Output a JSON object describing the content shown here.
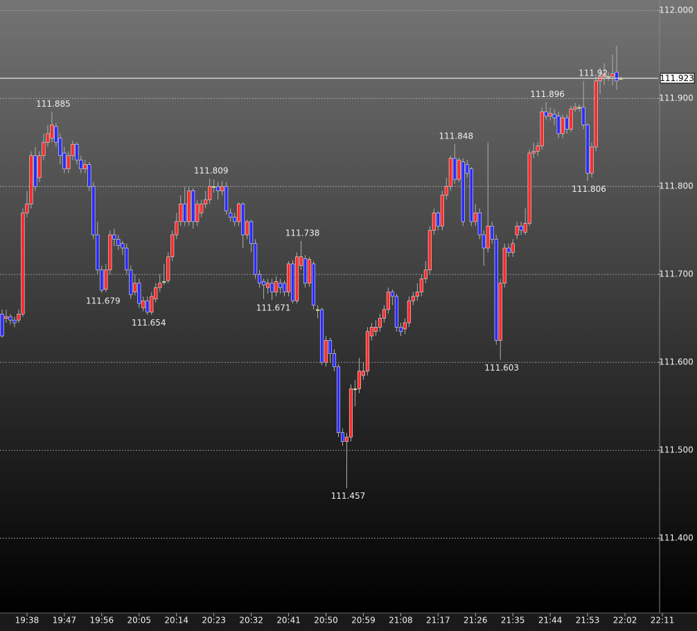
{
  "chart_data": {
    "type": "candlestick",
    "up_color": "#ff2a2a",
    "down_color": "#2a2aff",
    "flat_color": "#c8c800",
    "wick_color": "#b0b0b0",
    "grid": true,
    "ylim": [
      111.315,
      112.012
    ],
    "yticks": [
      {
        "value": 111.4,
        "label": "111.400"
      },
      {
        "value": 111.5,
        "label": "111.500"
      },
      {
        "value": 111.6,
        "label": "111.600"
      },
      {
        "value": 111.7,
        "label": "111.700"
      },
      {
        "value": 111.8,
        "label": "111.800"
      },
      {
        "value": 111.9,
        "label": "111.900"
      },
      {
        "value": 112.0,
        "label": "112.000"
      }
    ],
    "xlim": [
      -0.5,
      158
    ],
    "xticks": [
      {
        "value": 6,
        "label": "19:38"
      },
      {
        "value": 15,
        "label": "19:47"
      },
      {
        "value": 24,
        "label": "19:56"
      },
      {
        "value": 33,
        "label": "20:05"
      },
      {
        "value": 42,
        "label": "20:14"
      },
      {
        "value": 51,
        "label": "20:23"
      },
      {
        "value": 60,
        "label": "20:32"
      },
      {
        "value": 69,
        "label": "20:41"
      },
      {
        "value": 78,
        "label": "20:50"
      },
      {
        "value": 87,
        "label": "20:59"
      },
      {
        "value": 96,
        "label": "21:08"
      },
      {
        "value": 105,
        "label": "21:17"
      },
      {
        "value": 114,
        "label": "21:26"
      },
      {
        "value": 123,
        "label": "21:35"
      },
      {
        "value": 132,
        "label": "21:44"
      },
      {
        "value": 141,
        "label": "21:53"
      },
      {
        "value": 150,
        "label": "22:02"
      },
      {
        "value": 159,
        "label": "22:11"
      }
    ],
    "last_price": 111.923,
    "open": [
      111.655,
      111.65,
      111.652,
      111.648,
      111.648,
      111.655,
      111.77,
      111.78,
      111.835,
      111.81,
      111.835,
      111.85,
      111.855,
      111.868,
      111.855,
      111.838,
      111.82,
      111.835,
      111.848,
      111.83,
      111.82,
      111.825,
      111.8,
      111.745,
      111.705,
      111.683,
      111.705,
      111.745,
      111.74,
      111.735,
      111.73,
      111.705,
      111.68,
      111.69,
      111.662,
      111.67,
      111.657,
      111.672,
      111.685,
      111.692,
      111.693,
      111.72,
      111.745,
      111.76,
      111.78,
      111.76,
      111.795,
      111.76,
      111.77,
      111.78,
      111.785,
      111.8,
      111.8,
      111.795,
      111.8,
      111.77,
      111.765,
      111.76,
      111.78,
      111.745,
      111.76,
      111.735,
      111.7,
      111.692,
      111.685,
      111.69,
      111.68,
      111.69,
      111.69,
      111.68,
      111.712,
      111.67,
      111.71,
      111.718,
      111.69,
      111.712,
      111.66,
      111.66,
      111.6,
      111.625,
      111.61,
      111.595,
      111.52,
      111.51,
      111.515,
      111.57,
      111.57,
      111.585,
      111.59,
      111.63,
      111.635,
      111.64,
      111.65,
      111.66,
      111.68,
      111.675,
      111.64,
      111.638,
      111.645,
      111.67,
      111.675,
      111.68,
      111.695,
      111.705,
      111.75,
      111.77,
      111.755,
      111.79,
      111.8,
      111.832,
      111.808,
      111.828,
      111.825,
      111.82,
      111.76,
      111.77,
      111.745,
      111.73,
      111.755,
      111.74,
      111.625,
      111.69,
      111.73,
      111.725,
      111.745,
      111.755,
      111.748,
      111.758,
      111.838,
      111.84,
      111.846,
      111.885,
      111.88,
      111.882,
      111.88,
      111.86,
      111.878,
      111.865,
      111.888,
      111.89,
      111.89,
      111.87,
      111.815,
      111.845,
      111.92,
      111.925,
      111.925,
      111.925,
      111.93,
      111.923
    ],
    "high": [
      111.66,
      111.66,
      111.655,
      111.652,
      111.66,
      111.775,
      111.795,
      111.84,
      111.845,
      111.84,
      111.86,
      111.87,
      111.885,
      111.872,
      111.86,
      111.845,
      111.84,
      111.852,
      111.85,
      111.835,
      111.83,
      111.828,
      111.805,
      111.76,
      111.71,
      111.712,
      111.75,
      111.752,
      111.745,
      111.738,
      111.735,
      111.71,
      111.7,
      111.695,
      111.675,
      111.675,
      111.68,
      111.69,
      111.7,
      111.712,
      111.725,
      111.75,
      111.77,
      111.79,
      111.8,
      111.8,
      111.798,
      111.785,
      111.785,
      111.795,
      111.809,
      111.808,
      111.805,
      111.806,
      111.805,
      111.775,
      111.77,
      111.782,
      111.782,
      111.762,
      111.762,
      111.74,
      111.705,
      111.695,
      111.695,
      111.695,
      111.698,
      111.695,
      111.693,
      111.715,
      111.716,
      111.725,
      111.738,
      111.722,
      111.72,
      111.715,
      111.665,
      111.662,
      111.63,
      111.628,
      111.615,
      111.598,
      111.525,
      111.52,
      111.575,
      111.58,
      111.605,
      111.6,
      111.64,
      111.645,
      111.648,
      111.655,
      111.665,
      111.685,
      111.683,
      111.678,
      111.645,
      111.65,
      111.675,
      111.68,
      111.69,
      111.7,
      111.715,
      111.755,
      111.775,
      111.772,
      111.795,
      111.81,
      111.835,
      111.848,
      111.833,
      111.832,
      111.83,
      111.822,
      111.78,
      111.775,
      111.75,
      111.85,
      111.76,
      111.745,
      111.695,
      111.735,
      111.735,
      111.74,
      111.76,
      111.76,
      111.775,
      111.842,
      111.85,
      111.85,
      111.89,
      111.896,
      111.89,
      111.888,
      111.885,
      111.882,
      111.882,
      111.892,
      111.895,
      111.893,
      111.92,
      111.872,
      111.85,
      111.925,
      111.935,
      111.94,
      111.93,
      111.95,
      111.96,
      111.925
    ],
    "low": [
      111.628,
      111.645,
      111.643,
      111.64,
      111.645,
      111.652,
      111.765,
      111.775,
      111.795,
      111.805,
      111.83,
      111.845,
      111.85,
      111.845,
      111.825,
      111.815,
      111.815,
      111.83,
      111.825,
      111.815,
      111.815,
      111.795,
      111.74,
      111.7,
      111.679,
      111.68,
      111.7,
      111.732,
      111.728,
      111.722,
      111.7,
      111.672,
      111.676,
      111.662,
      111.658,
      111.654,
      111.654,
      111.668,
      111.68,
      111.688,
      111.69,
      111.715,
      111.74,
      111.755,
      111.755,
      111.755,
      111.752,
      111.755,
      111.765,
      111.775,
      111.78,
      111.793,
      111.785,
      111.79,
      111.768,
      111.76,
      111.755,
      111.755,
      111.73,
      111.74,
      111.725,
      111.695,
      111.685,
      111.672,
      111.678,
      111.671,
      111.675,
      111.678,
      111.675,
      111.675,
      111.667,
      111.667,
      111.705,
      111.685,
      111.686,
      111.66,
      111.65,
      111.597,
      111.595,
      111.6,
      111.59,
      111.515,
      111.505,
      111.457,
      111.51,
      111.55,
      111.565,
      111.58,
      111.585,
      111.625,
      111.63,
      111.635,
      111.645,
      111.655,
      111.665,
      111.635,
      111.63,
      111.632,
      111.64,
      111.665,
      111.67,
      111.675,
      111.69,
      111.7,
      111.745,
      111.75,
      111.75,
      111.785,
      111.795,
      111.803,
      111.805,
      111.755,
      111.81,
      111.755,
      111.755,
      111.74,
      111.71,
      111.725,
      111.735,
      111.62,
      111.603,
      111.685,
      111.72,
      111.72,
      111.74,
      111.745,
      111.745,
      111.755,
      111.832,
      111.835,
      111.842,
      111.876,
      111.875,
      111.87,
      111.855,
      111.855,
      111.86,
      111.862,
      111.885,
      111.885,
      111.865,
      111.806,
      111.81,
      111.84,
      111.905,
      111.915,
      111.92,
      111.915,
      111.91,
      111.921
    ],
    "close": [
      111.63,
      111.652,
      111.648,
      111.645,
      111.655,
      111.77,
      111.78,
      111.835,
      111.8,
      111.835,
      111.85,
      111.86,
      111.87,
      111.85,
      111.835,
      111.82,
      111.835,
      111.848,
      111.83,
      111.82,
      111.825,
      111.8,
      111.745,
      111.705,
      111.682,
      111.705,
      111.745,
      111.74,
      111.733,
      111.73,
      111.705,
      111.677,
      111.69,
      111.667,
      111.67,
      111.657,
      111.675,
      111.685,
      111.69,
      111.692,
      111.72,
      111.745,
      111.76,
      111.78,
      111.76,
      111.795,
      111.76,
      111.78,
      111.78,
      111.785,
      111.8,
      111.8,
      111.795,
      111.8,
      111.772,
      111.765,
      111.76,
      111.78,
      111.745,
      111.76,
      111.735,
      111.7,
      111.69,
      111.688,
      111.69,
      111.68,
      111.692,
      111.685,
      111.68,
      111.712,
      111.67,
      111.72,
      111.72,
      111.69,
      111.717,
      111.665,
      111.66,
      111.6,
      111.625,
      111.61,
      111.595,
      111.52,
      111.51,
      111.515,
      111.57,
      111.57,
      111.59,
      111.59,
      111.635,
      111.64,
      111.64,
      111.65,
      111.66,
      111.68,
      111.675,
      111.64,
      111.635,
      111.645,
      111.67,
      111.675,
      111.68,
      111.695,
      111.705,
      111.75,
      111.77,
      111.755,
      111.79,
      111.8,
      111.832,
      111.808,
      111.83,
      111.76,
      111.815,
      111.76,
      111.77,
      111.745,
      111.73,
      111.755,
      111.74,
      111.625,
      111.69,
      111.73,
      111.725,
      111.735,
      111.755,
      111.75,
      111.758,
      111.838,
      111.84,
      111.846,
      111.885,
      111.88,
      111.883,
      111.878,
      111.86,
      111.878,
      111.865,
      111.888,
      111.89,
      111.89,
      111.87,
      111.815,
      111.845,
      111.92,
      111.925,
      111.928,
      111.925,
      111.928,
      111.92,
      111.923
    ],
    "annotations": [
      {
        "index": 12,
        "value": 111.885,
        "position": "above"
      },
      {
        "index": 24,
        "value": 111.679,
        "position": "below"
      },
      {
        "index": 35,
        "value": 111.654,
        "position": "below"
      },
      {
        "index": 50,
        "value": 111.809,
        "position": "above"
      },
      {
        "index": 65,
        "value": 111.671,
        "position": "below"
      },
      {
        "index": 72,
        "value": 111.738,
        "position": "above"
      },
      {
        "index": 83,
        "value": 111.457,
        "position": "below"
      },
      {
        "index": 109,
        "value": 111.848,
        "position": "above"
      },
      {
        "index": 120,
        "value": 111.603,
        "position": "below"
      },
      {
        "index": 131,
        "value": 111.896,
        "position": "above"
      },
      {
        "index": 141,
        "value": 111.806,
        "position": "below"
      },
      {
        "index": 142,
        "value": 111.92,
        "position": "above"
      }
    ]
  }
}
